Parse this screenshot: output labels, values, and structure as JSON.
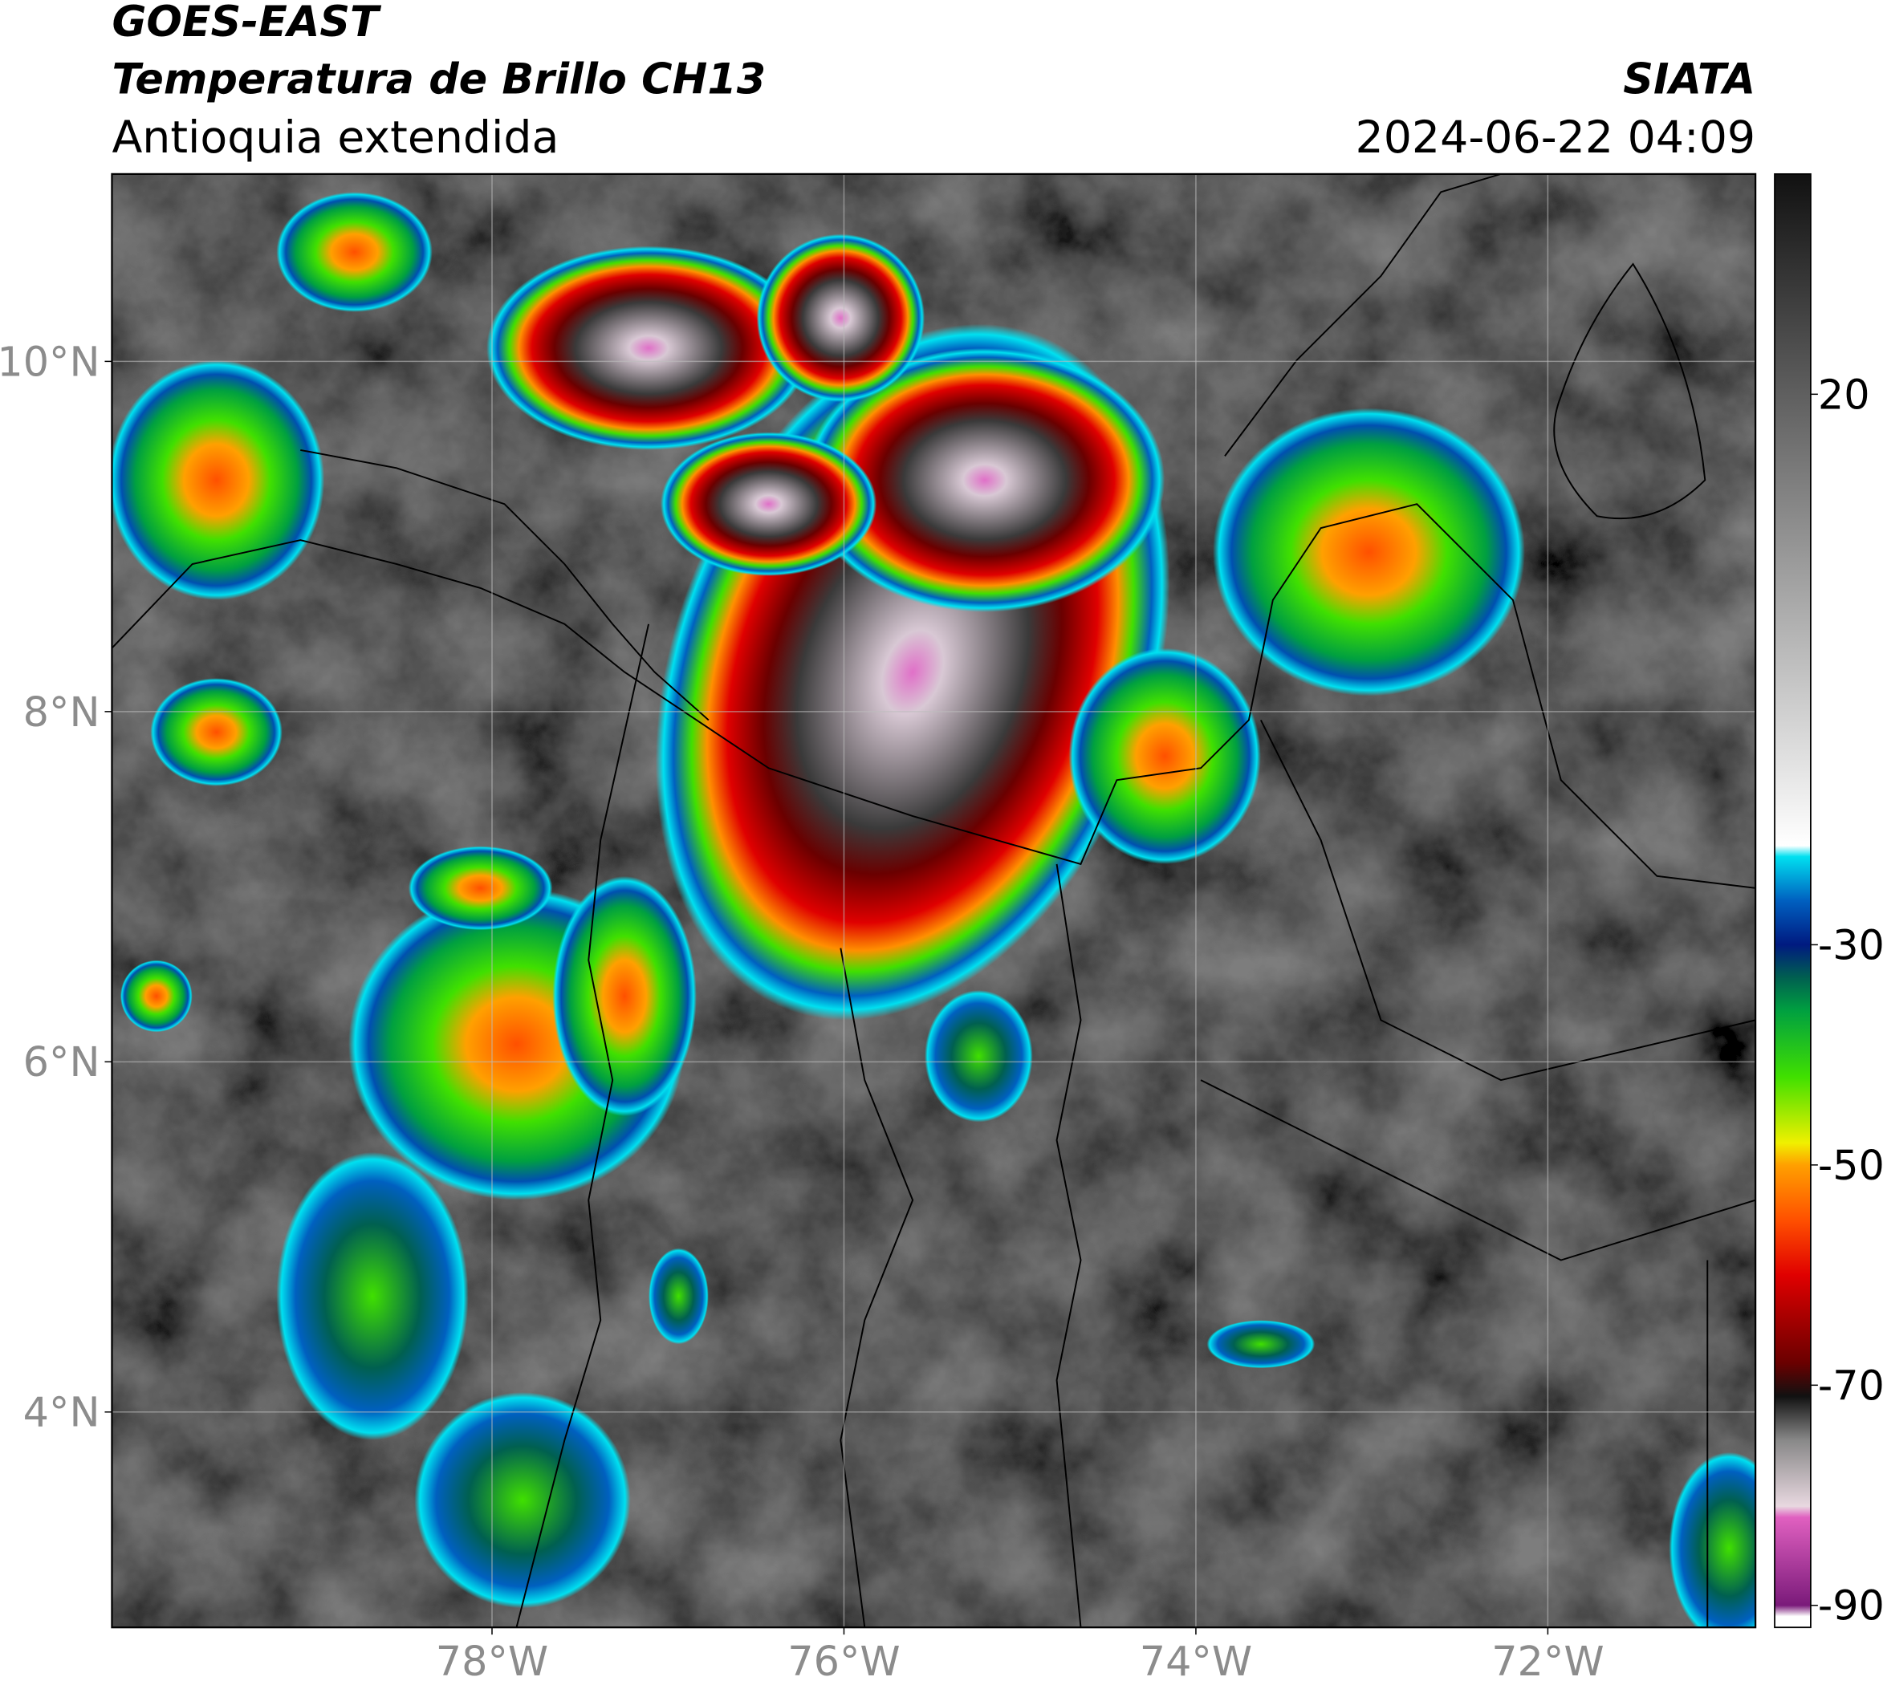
{
  "header": {
    "title": "GOES-EAST",
    "subtitle": "Temperatura de Brillo CH13",
    "region": "Antioquia extendida",
    "source": "SIATA",
    "datetime": "2024-06-22 04:09"
  },
  "map": {
    "type": "map",
    "xlim": [
      -80.16,
      -70.82
    ],
    "ylim": [
      2.77,
      11.07
    ],
    "xticks": [
      {
        "value": -78,
        "label": "78°W"
      },
      {
        "value": -76,
        "label": "76°W"
      },
      {
        "value": -74,
        "label": "74°W"
      },
      {
        "value": -72,
        "label": "72°W"
      }
    ],
    "yticks": [
      {
        "value": 10,
        "label": "10°N"
      },
      {
        "value": 8,
        "label": "8°N"
      },
      {
        "value": 6,
        "label": "6°N"
      },
      {
        "value": 4,
        "label": "4°N"
      }
    ],
    "grid": true
  },
  "colorbar": {
    "clim": [
      -92,
      40
    ],
    "ticks": [
      20,
      -30,
      -50,
      -70,
      -90
    ],
    "colors": [
      {
        "value": -92,
        "color": "#ffffff"
      },
      {
        "value": -91,
        "color": "#ffffff"
      },
      {
        "value": -90,
        "color": "#7a1a7a"
      },
      {
        "value": -82,
        "color": "#e060c0"
      },
      {
        "value": -81,
        "color": "#e8d8e0"
      },
      {
        "value": -75,
        "color": "#888888"
      },
      {
        "value": -71,
        "color": "#111111"
      },
      {
        "value": -68,
        "color": "#6a0000"
      },
      {
        "value": -60,
        "color": "#e00000"
      },
      {
        "value": -55,
        "color": "#ff5000"
      },
      {
        "value": -50,
        "color": "#ffa000"
      },
      {
        "value": -48,
        "color": "#f0f000"
      },
      {
        "value": -42,
        "color": "#40e000"
      },
      {
        "value": -36,
        "color": "#00a040"
      },
      {
        "value": -33,
        "color": "#006050"
      },
      {
        "value": -30,
        "color": "#001a80"
      },
      {
        "value": -26,
        "color": "#0060c0"
      },
      {
        "value": -22,
        "color": "#00e0f0"
      },
      {
        "value": -21,
        "color": "#ffffff"
      },
      {
        "value": 40,
        "color": "#111111"
      }
    ]
  }
}
